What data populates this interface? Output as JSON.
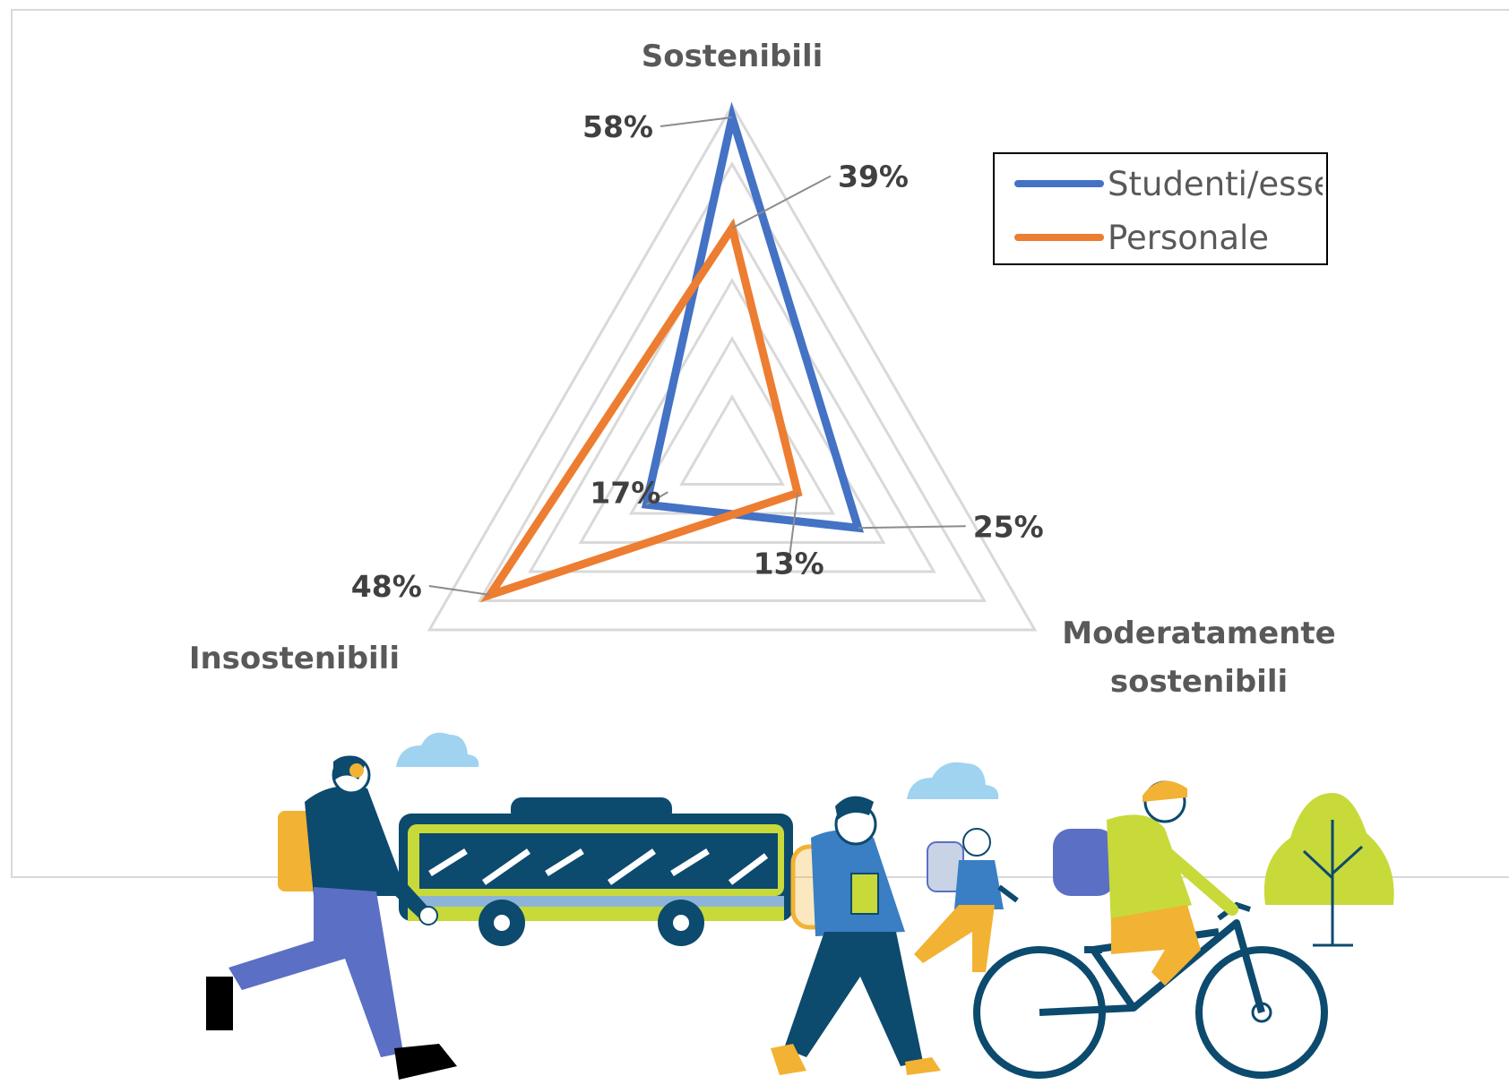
{
  "chart_data": {
    "type": "radar",
    "axes": [
      "Sostenibili",
      "Moderatamente sostenibili",
      "Insostenibili"
    ],
    "axis_label_lines": {
      "Sostenibili": [
        "Sostenibili"
      ],
      "Moderatamente sostenibili": [
        "Moderatamente",
        "sostenibili"
      ],
      "Insostenibili": [
        "Insostenibili"
      ]
    },
    "rmax": 60,
    "grid_levels": [
      10,
      20,
      30,
      40,
      50,
      60
    ],
    "series": [
      {
        "name": "Studenti/esse",
        "color": "#4472c4",
        "values": [
          58,
          25,
          17
        ],
        "labels": [
          "58%",
          "25%",
          "17%"
        ]
      },
      {
        "name": "Personale",
        "color": "#ed7d31",
        "values": [
          39,
          13,
          48
        ],
        "labels": [
          "39%",
          "13%",
          "48%"
        ]
      }
    ],
    "legend": {
      "position": "top-right",
      "entries": [
        "Studenti/esse",
        "Personale"
      ]
    }
  },
  "colors": {
    "grid": "#d9d9d9",
    "navy": "#0c4a6e",
    "lime": "#c8d93a",
    "sky": "#9fd3f0",
    "blue": "#3a7fc3",
    "periwinkle": "#5b6fc4",
    "mustard": "#f2b233"
  },
  "illustration_icons": [
    "cloud-icon",
    "running-woman-icon",
    "bus-icon",
    "walking-student-icon",
    "child-runner-icon",
    "cyclist-icon",
    "tree-icon"
  ]
}
